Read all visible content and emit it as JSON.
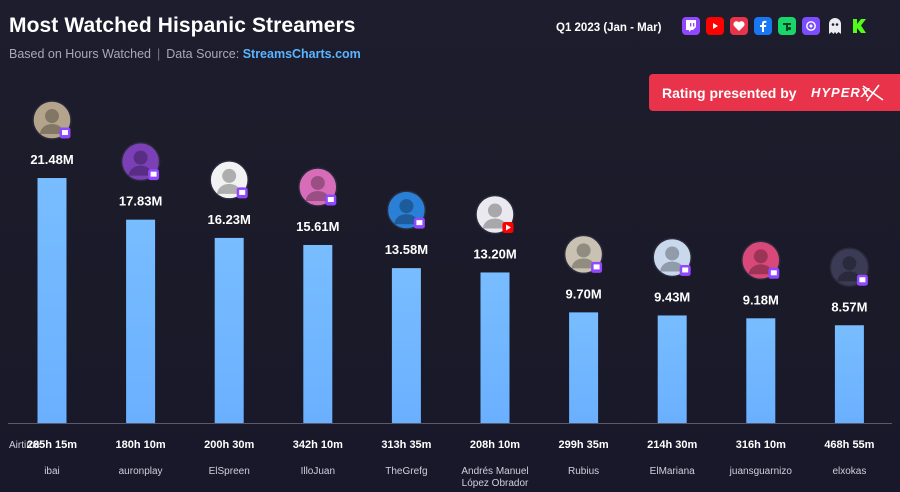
{
  "header": {
    "title": "Most Watched Hispanic Streamers",
    "subtitle_prefix": "Based on Hours Watched",
    "subtitle_sep": "|",
    "subtitle_source_label": "Data Source:",
    "subtitle_source": "StreamsCharts.com",
    "period": "Q1 2023 (Jan - Mar)"
  },
  "platforms": [
    {
      "name": "twitch-icon",
      "color": "#9147ff"
    },
    {
      "name": "youtube-icon",
      "color": "#ff0000"
    },
    {
      "name": "heart-icon",
      "color": "#e8334a"
    },
    {
      "name": "facebook-icon",
      "color": "#1877f2"
    },
    {
      "name": "trovo-icon",
      "color": "#19d66b"
    },
    {
      "name": "nimo-icon",
      "color": "#7b4dff"
    },
    {
      "name": "ghost-icon",
      "color": "#e9e9ef"
    },
    {
      "name": "kick-icon",
      "color": "#53fc18"
    }
  ],
  "promo": {
    "text": "Rating presented by",
    "logo_text": "HYPERX"
  },
  "airtime_title": "Airtime:",
  "chart_data": {
    "type": "bar",
    "title": "Most Watched Hispanic Streamers",
    "ylabel": "",
    "xlabel": "",
    "unit": "M",
    "ylim": [
      0,
      23.5
    ],
    "grid": false,
    "categories": [
      "ibai",
      "auronplay",
      "ElSpreen",
      "IlloJuan",
      "TheGrefg",
      "Andrés Manuel López Obrador",
      "Rubius",
      "ElMariana",
      "juansguarnizo",
      "elxokas"
    ],
    "name_lines": [
      [
        "ibai"
      ],
      [
        "auronplay"
      ],
      [
        "ElSpreen"
      ],
      [
        "IlloJuan"
      ],
      [
        "TheGrefg"
      ],
      [
        "Andrés Manuel",
        "López Obrador"
      ],
      [
        "Rubius"
      ],
      [
        "ElMariana"
      ],
      [
        "juansguarnizo"
      ],
      [
        "elxokas"
      ]
    ],
    "values": [
      21.48,
      17.83,
      16.23,
      15.61,
      13.58,
      13.2,
      9.7,
      9.43,
      9.18,
      8.57
    ],
    "value_labels": [
      "21.48M",
      "17.83M",
      "16.23M",
      "15.61M",
      "13.58M",
      "13.20M",
      "9.70M",
      "9.43M",
      "9.18M",
      "8.57M"
    ],
    "airtime": [
      "285h 15m",
      "180h 10m",
      "200h 30m",
      "342h 10m",
      "313h 35m",
      "208h 10m",
      "299h 35m",
      "214h 30m",
      "316h 10m",
      "468h 55m"
    ],
    "platform_badges": [
      "twitch",
      "twitch",
      "twitch",
      "twitch",
      "twitch",
      "youtube",
      "twitch",
      "twitch",
      "twitch",
      "twitch"
    ],
    "bar_color": "#6ab0ff",
    "bar_color_top": "#78bdff"
  }
}
